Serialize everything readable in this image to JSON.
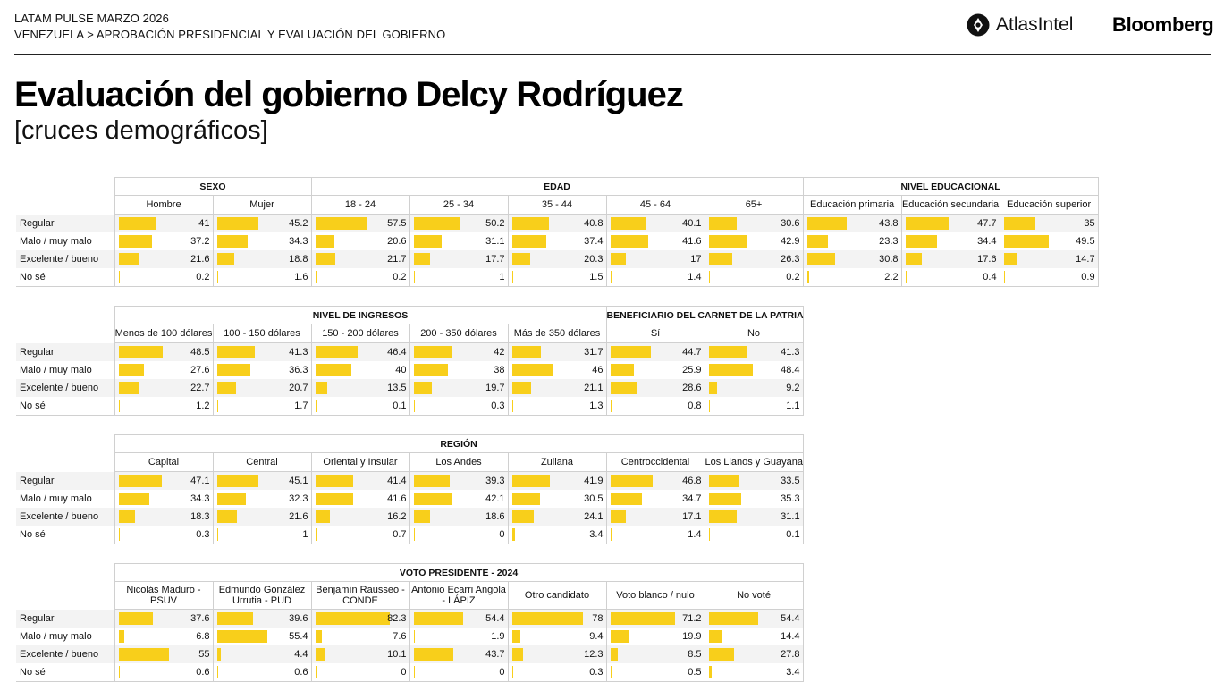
{
  "header": {
    "line1": "LATAM PULSE MARZO 2026",
    "line2": "VENEZUELA > APROBACIÓN PRESIDENCIAL Y EVALUACIÓN DEL GOBIERNO",
    "brand_atlas": "AtlasIntel",
    "brand_bloomberg": "Bloomberg",
    "title": "Evaluación del gobierno Delcy Rodríguez",
    "subtitle": "[cruces demográficos]"
  },
  "colors": {
    "bar": "#f8cf1b",
    "grid": "#d0d0d0",
    "stripe": "#f3f3f3"
  },
  "chart_data": [
    {
      "type": "table",
      "rows": [
        "Regular",
        "Malo / muy malo",
        "Excelente / bueno",
        "No sé"
      ],
      "groups": [
        {
          "name": "SEXO",
          "columns": [
            {
              "label": "Hombre",
              "values": [
                41,
                37.2,
                21.6,
                0.2
              ]
            },
            {
              "label": "Mujer",
              "values": [
                45.2,
                34.3,
                18.8,
                1.6
              ]
            }
          ]
        },
        {
          "name": "EDAD",
          "columns": [
            {
              "label": "18 - 24",
              "values": [
                57.5,
                20.6,
                21.7,
                0.2
              ]
            },
            {
              "label": "25 - 34",
              "values": [
                50.2,
                31.1,
                17.7,
                1
              ]
            },
            {
              "label": "35 - 44",
              "values": [
                40.8,
                37.4,
                20.3,
                1.5
              ]
            },
            {
              "label": "45 - 64",
              "values": [
                40.1,
                41.6,
                17,
                1.4
              ]
            },
            {
              "label": "65+",
              "values": [
                30.6,
                42.9,
                26.3,
                0.2
              ]
            }
          ]
        },
        {
          "name": "NIVEL EDUCACIONAL",
          "columns": [
            {
              "label": "Educación primaria",
              "values": [
                43.8,
                23.3,
                30.8,
                2.2
              ]
            },
            {
              "label": "Educación secundaria",
              "values": [
                47.7,
                34.4,
                17.6,
                0.4
              ]
            },
            {
              "label": "Educación superior",
              "values": [
                35,
                49.5,
                14.7,
                0.9
              ]
            }
          ]
        }
      ]
    },
    {
      "type": "table",
      "rows": [
        "Regular",
        "Malo / muy malo",
        "Excelente / bueno",
        "No sé"
      ],
      "groups": [
        {
          "name": "NIVEL DE INGRESOS",
          "columns": [
            {
              "label": "Menos de 100 dólares",
              "values": [
                48.5,
                27.6,
                22.7,
                1.2
              ]
            },
            {
              "label": "100 - 150 dólares",
              "values": [
                41.3,
                36.3,
                20.7,
                1.7
              ]
            },
            {
              "label": "150 - 200 dólares",
              "values": [
                46.4,
                40,
                13.5,
                0.1
              ]
            },
            {
              "label": "200 - 350 dólares",
              "values": [
                42,
                38,
                19.7,
                0.3
              ]
            },
            {
              "label": "Más de 350 dólares",
              "values": [
                31.7,
                46,
                21.1,
                1.3
              ]
            }
          ]
        },
        {
          "name": "BENEFICIARIO DEL CARNET DE LA PATRIA",
          "columns": [
            {
              "label": "Sí",
              "values": [
                44.7,
                25.9,
                28.6,
                0.8
              ]
            },
            {
              "label": "No",
              "values": [
                41.3,
                48.4,
                9.2,
                1.1
              ]
            }
          ]
        }
      ]
    },
    {
      "type": "table",
      "rows": [
        "Regular",
        "Malo / muy malo",
        "Excelente / bueno",
        "No sé"
      ],
      "groups": [
        {
          "name": "REGIÓN",
          "columns": [
            {
              "label": "Capital",
              "values": [
                47.1,
                34.3,
                18.3,
                0.3
              ]
            },
            {
              "label": "Central",
              "values": [
                45.1,
                32.3,
                21.6,
                1
              ]
            },
            {
              "label": "Oriental y Insular",
              "values": [
                41.4,
                41.6,
                16.2,
                0.7
              ]
            },
            {
              "label": "Los Andes",
              "values": [
                39.3,
                42.1,
                18.6,
                0
              ]
            },
            {
              "label": "Zuliana",
              "values": [
                41.9,
                30.5,
                24.1,
                3.4
              ]
            },
            {
              "label": "Centroccidental",
              "values": [
                46.8,
                34.7,
                17.1,
                1.4
              ]
            },
            {
              "label": "Los Llanos y Guayana",
              "values": [
                33.5,
                35.3,
                31.1,
                0.1
              ]
            }
          ]
        }
      ]
    },
    {
      "type": "table",
      "rows": [
        "Regular",
        "Malo / muy malo",
        "Excelente / bueno",
        "No sé"
      ],
      "groups": [
        {
          "name": "VOTO PRESIDENTE - 2024",
          "columns": [
            {
              "label": "Nicolás Maduro - PSUV",
              "values": [
                37.6,
                6.8,
                55,
                0.6
              ]
            },
            {
              "label": "Edmundo González Urrutia - PUD",
              "values": [
                39.6,
                55.4,
                4.4,
                0.6
              ]
            },
            {
              "label": "Benjamín Rausseo - CONDE",
              "values": [
                82.3,
                7.6,
                10.1,
                0
              ]
            },
            {
              "label": "Antonio Ecarri Angola - LÁPIZ",
              "values": [
                54.4,
                1.9,
                43.7,
                0
              ]
            },
            {
              "label": "Otro candidato",
              "values": [
                78,
                9.4,
                12.3,
                0.3
              ]
            },
            {
              "label": "Voto blanco / nulo",
              "values": [
                71.2,
                19.9,
                8.5,
                0.5
              ]
            },
            {
              "label": "No voté",
              "values": [
                54.4,
                14.4,
                27.8,
                3.4
              ]
            }
          ]
        }
      ]
    }
  ]
}
